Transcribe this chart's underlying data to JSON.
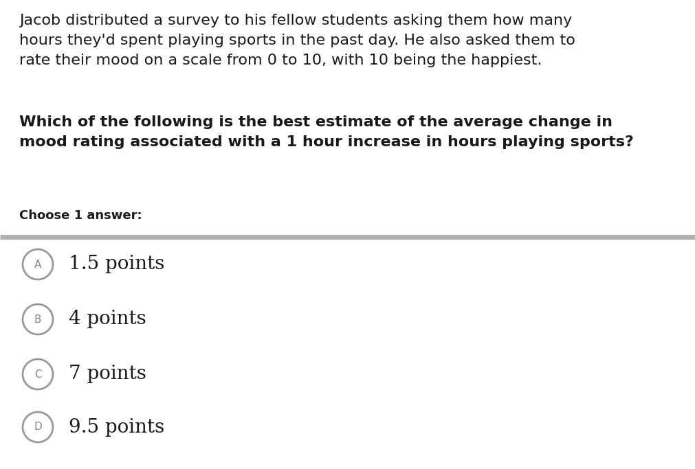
{
  "background_color": "#ffffff",
  "paragraph_text": "Jacob distributed a survey to his fellow students asking them how many\nhours they'd spent playing sports in the past day. He also asked them to\nrate their mood on a scale from 0 to 10, with 10 being the happiest.",
  "question_text": "Which of the following is the best estimate of the average change in\nmood rating associated with a 1 hour increase in hours playing sports?",
  "choose_text": "Choose 1 answer:",
  "divider_color": "#b0b0b0",
  "options": [
    {
      "label": "A",
      "text": "1.5 points"
    },
    {
      "label": "B",
      "text": "4 points"
    },
    {
      "label": "C",
      "text": "7 points"
    },
    {
      "label": "D",
      "text": "9.5 points"
    }
  ],
  "paragraph_fontsize": 16,
  "question_fontsize": 16,
  "choose_fontsize": 13,
  "option_fontsize": 20,
  "label_fontsize": 11,
  "text_color": "#1a1a1a",
  "circle_edge_color": "#999999",
  "circle_face_color": "#ffffff",
  "label_color": "#888888",
  "fig_width": 10.12,
  "fig_height": 6.83,
  "dpi": 100
}
